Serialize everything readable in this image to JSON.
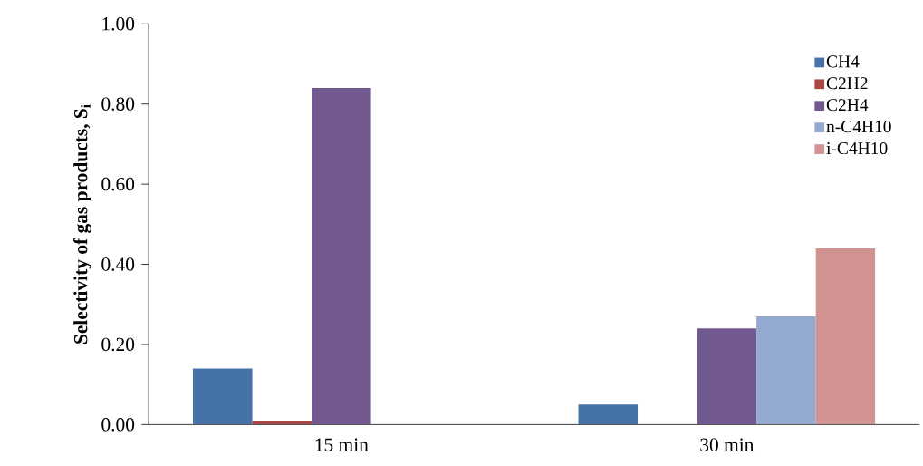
{
  "chart_data": {
    "type": "bar",
    "ylabel": "Selectivity of gas products, S$_{i}$",
    "categories": [
      "15 min",
      "30 min"
    ],
    "series": [
      {
        "name": "CH4",
        "color": "#4572a7",
        "values": [
          0.14,
          0.05
        ]
      },
      {
        "name": "C2H2",
        "color": "#aa4643",
        "values": [
          0.01,
          0
        ]
      },
      {
        "name": "C2H4",
        "color": "#71588f",
        "values": [
          0.84,
          0.24
        ]
      },
      {
        "name": "n-C4H10",
        "color": "#93a9cf",
        "values": [
          0,
          0.27
        ]
      },
      {
        "name": "i-C4H10",
        "color": "#d19392",
        "values": [
          0,
          0.44
        ]
      }
    ],
    "ylim": [
      0,
      1
    ],
    "yticks": [
      {
        "value": 0,
        "label": "0.00"
      },
      {
        "value": 0.2,
        "label": "0.20"
      },
      {
        "value": 0.4,
        "label": "0.40"
      },
      {
        "value": 0.6,
        "label": "0.60"
      },
      {
        "value": 0.8,
        "label": "0.80"
      },
      {
        "value": 1,
        "label": "1.00"
      }
    ],
    "grid": false,
    "legend": "top right"
  }
}
